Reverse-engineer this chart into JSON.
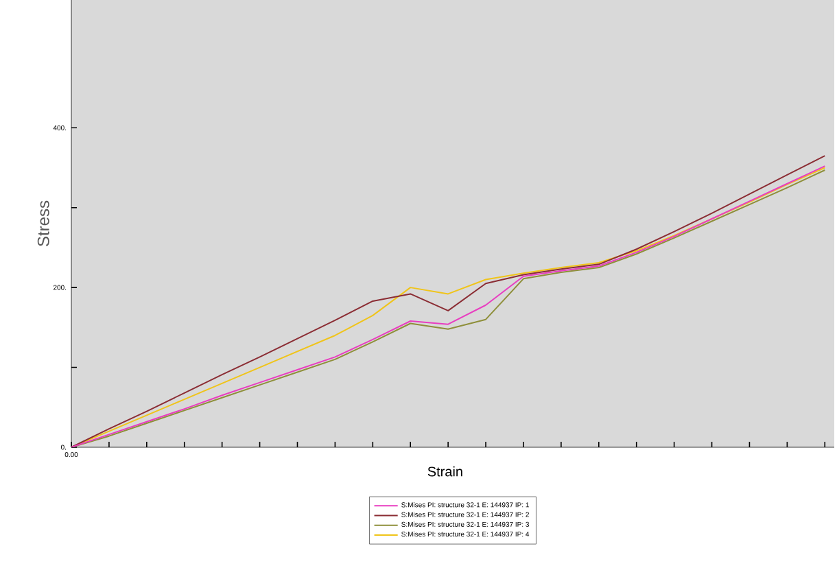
{
  "chart_data": {
    "type": "line",
    "xlabel": "Strain",
    "ylabel": "Stress",
    "categories": [
      "0.00",
      null,
      null,
      null,
      null,
      null,
      null,
      null,
      null,
      null,
      null,
      null,
      null,
      null,
      null,
      null,
      null,
      null,
      null,
      null,
      null
    ],
    "ylim": [
      0,
      560
    ],
    "yticks": [
      {
        "value": 0,
        "label": "0."
      },
      {
        "value": 100,
        "label": null
      },
      {
        "value": 200,
        "label": "200."
      },
      {
        "value": 300,
        "label": null
      },
      {
        "value": 400,
        "label": "400."
      }
    ],
    "grid": false,
    "legend": "bottom",
    "marker": "none",
    "line_style": "solid",
    "series": [
      {
        "name": "S:Mises PI: structure 32-1 E: 144937 IP: 1",
        "color": "#e83ec0",
        "values": [
          0,
          16,
          32,
          48,
          65,
          81,
          97,
          113,
          135,
          158,
          154,
          178,
          214,
          221,
          227,
          244,
          264,
          286,
          308,
          330,
          352
        ]
      },
      {
        "name": "S:Mises PI: structure 32-1 E: 144937 IP: 2",
        "color": "#8b2d34",
        "values": [
          0,
          23,
          45,
          68,
          91,
          113,
          136,
          159,
          183,
          192,
          171,
          205,
          216,
          223,
          229,
          248,
          270,
          293,
          317,
          341,
          365
        ]
      },
      {
        "name": "S:Mises PI: structure 32-1 E: 144937 IP: 3",
        "color": "#8e8f3a",
        "values": [
          0,
          14,
          30,
          46,
          62,
          78,
          94,
          110,
          132,
          155,
          148,
          160,
          211,
          219,
          225,
          242,
          262,
          283,
          304,
          325,
          347
        ]
      },
      {
        "name": "S:Mises PI: structure 32-1 E: 144937 IP: 4",
        "color": "#f0c419",
        "values": [
          0,
          20,
          40,
          60,
          80,
          100,
          120,
          140,
          165,
          200,
          192,
          210,
          218,
          225,
          231,
          246,
          265,
          286,
          307,
          329,
          350
        ]
      }
    ]
  }
}
